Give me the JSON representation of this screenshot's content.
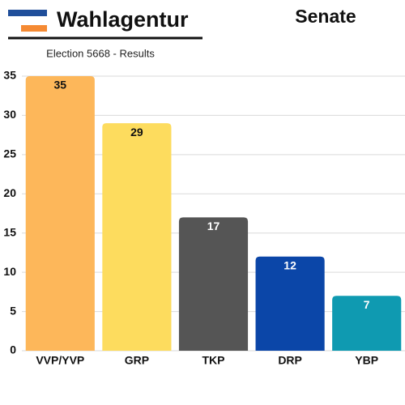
{
  "chart_data": {
    "type": "bar",
    "brand": "Wahlagentur",
    "title": "Senate",
    "subtitle": "Election 5668 - Results",
    "categories": [
      "VVP/YVP",
      "GRP",
      "TKP",
      "DRP",
      "YBP"
    ],
    "values": [
      35,
      29,
      17,
      12,
      7
    ],
    "colors": [
      "#fdb75a",
      "#fddc5e",
      "#555555",
      "#0b46a8",
      "#0f9ab1"
    ],
    "ylim": [
      0,
      35
    ],
    "yticks": [
      0,
      5,
      10,
      15,
      20,
      25,
      30,
      35
    ],
    "grid": true
  }
}
